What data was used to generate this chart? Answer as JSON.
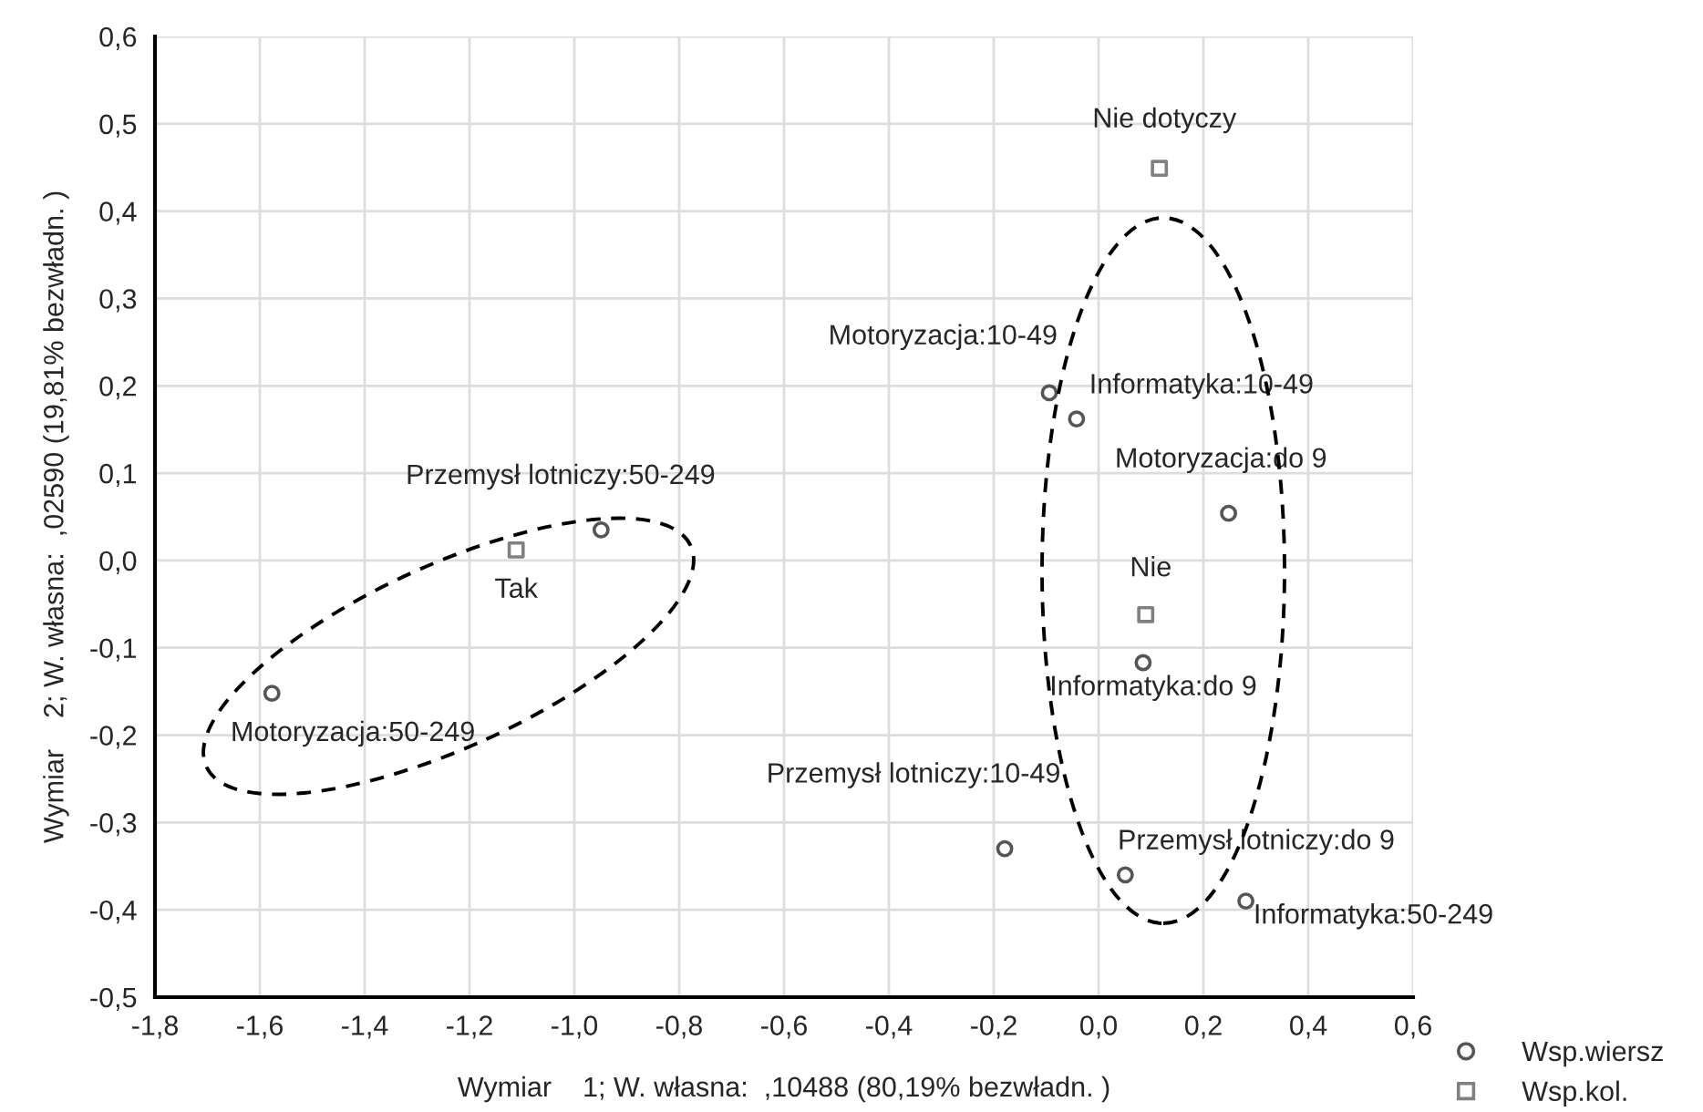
{
  "chart_data": {
    "type": "scatter",
    "xlabel": "Wymiar    1; W. własna:  ,10488 (80,19% bezwładn. )",
    "ylabel": "Wymiar    2; W. własna:  ,02590 (19,81% bezwładn. )",
    "xlim": [
      -1.8,
      0.6
    ],
    "xticks": [
      {
        "value": -1.8,
        "label": "-1,8"
      },
      {
        "value": -1.6,
        "label": "-1,6"
      },
      {
        "value": -1.4,
        "label": "-1,4"
      },
      {
        "value": -1.2,
        "label": "-1,2"
      },
      {
        "value": -1.0,
        "label": "-1,0"
      },
      {
        "value": -0.8,
        "label": "-0,8"
      },
      {
        "value": -0.6,
        "label": "-0,6"
      },
      {
        "value": -0.4,
        "label": "-0,4"
      },
      {
        "value": -0.2,
        "label": "-0,2"
      },
      {
        "value": 0.0,
        "label": "0,0"
      },
      {
        "value": 0.2,
        "label": "0,2"
      },
      {
        "value": 0.4,
        "label": "0,4"
      },
      {
        "value": 0.6,
        "label": "0,6"
      }
    ],
    "ylim": [
      -0.5,
      0.6
    ],
    "yticks": [
      {
        "value": -0.5,
        "label": "-0,5"
      },
      {
        "value": -0.4,
        "label": "-0,4"
      },
      {
        "value": -0.3,
        "label": "-0,3"
      },
      {
        "value": -0.2,
        "label": "-0,2"
      },
      {
        "value": -0.1,
        "label": "-0,1"
      },
      {
        "value": 0.0,
        "label": "0,0"
      },
      {
        "value": 0.1,
        "label": "0,1"
      },
      {
        "value": 0.2,
        "label": "0,2"
      },
      {
        "value": 0.3,
        "label": "0,3"
      },
      {
        "value": 0.4,
        "label": "0,4"
      },
      {
        "value": 0.5,
        "label": "0,5"
      },
      {
        "value": 0.6,
        "label": "0,6"
      }
    ],
    "grid": true,
    "legend": "bottom right",
    "series": [
      {
        "name": "Wsp.wiersz",
        "marker": "circle",
        "color": "#555555",
        "x": [
          -1.577,
          -0.949,
          -0.094,
          -0.042,
          0.248,
          0.085,
          -0.179,
          0.051,
          0.281
        ],
        "values": [
          -0.152,
          0.035,
          0.192,
          0.162,
          0.054,
          -0.117,
          -0.33,
          -0.36,
          -0.39
        ]
      },
      {
        "name": "Wsp.kol.",
        "marker": "square",
        "color": "#808080",
        "x": [
          0.116,
          0.09,
          -1.111
        ],
        "values": [
          0.449,
          -0.062,
          0.012
        ]
      }
    ],
    "annotations": [
      {
        "text": "Motoryzacja:50-249",
        "x": -1.577,
        "y": -0.152
      },
      {
        "text": "Przemysł lotniczy:50-249",
        "x": -0.949,
        "y": 0.035
      },
      {
        "text": "Motoryzacja:10-49",
        "x": -0.094,
        "y": 0.192
      },
      {
        "text": "Informatyka:10-49",
        "x": -0.042,
        "y": 0.162
      },
      {
        "text": "Motoryzacja:do 9",
        "x": 0.248,
        "y": 0.054
      },
      {
        "text": "Informatyka:do 9",
        "x": 0.085,
        "y": -0.117
      },
      {
        "text": "Przemysł lotniczy:10-49",
        "x": -0.179,
        "y": -0.33
      },
      {
        "text": "Przemysł lotniczy:do 9",
        "x": 0.051,
        "y": -0.36
      },
      {
        "text": "Informatyka:50-249",
        "x": 0.281,
        "y": -0.39
      },
      {
        "text": "Nie dotyczy",
        "x": 0.116,
        "y": 0.449
      },
      {
        "text": "Nie",
        "x": 0.09,
        "y": -0.062
      },
      {
        "text": "Tak",
        "x": -1.111,
        "y": 0.012
      }
    ]
  }
}
